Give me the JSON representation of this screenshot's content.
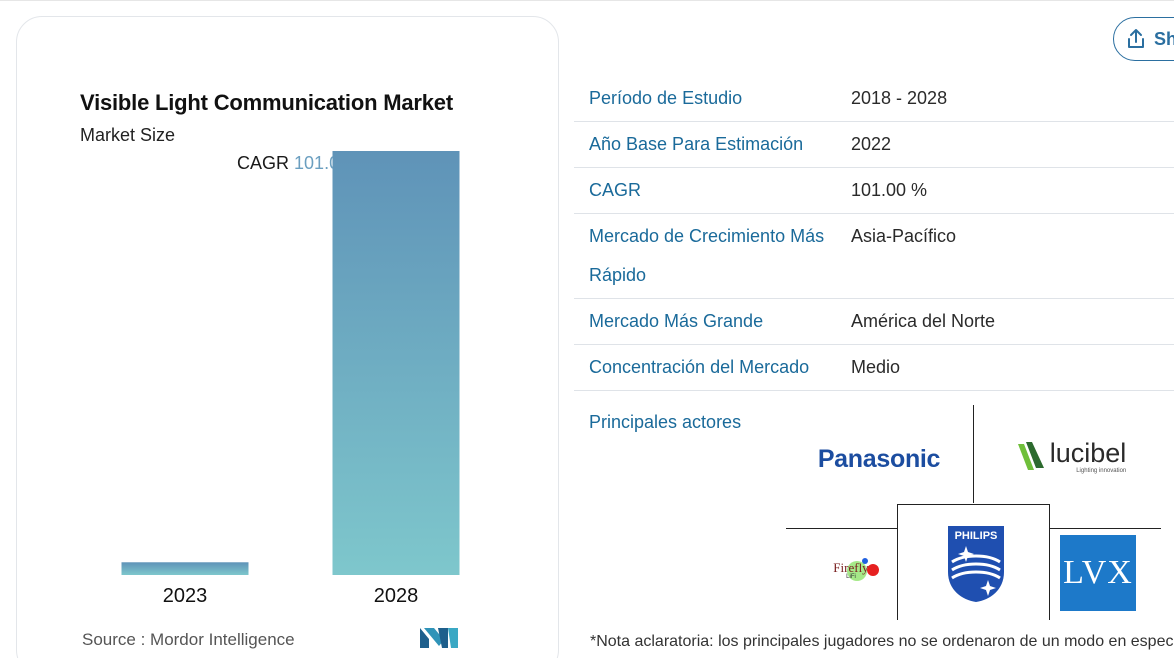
{
  "chart": {
    "title": "Visible Light Communication Market",
    "subtitle": "Market Size",
    "cagr_prefix": "CAGR",
    "cagr_value": "101.00 %",
    "source": "Source :  Mordor Intelligence"
  },
  "chart_data": {
    "type": "bar",
    "categories": [
      "2023",
      "2028"
    ],
    "values": [
      3,
      100
    ],
    "ylim": [
      0,
      100
    ],
    "grid": false,
    "colors": {
      "bar_top": "#5f93b8",
      "bar_bottom": "#7ec7cc"
    }
  },
  "share": {
    "label": "Sh"
  },
  "info_rows": [
    {
      "label": "Período de Estudio",
      "value": "2018 - 2028"
    },
    {
      "label": "Año Base Para Estimación",
      "value": "2022"
    },
    {
      "label": "CAGR",
      "value": "101.00 %"
    },
    {
      "label": "Mercado de Crecimiento Más Rápido",
      "value": "Asia-Pacífico"
    },
    {
      "label": "Mercado Más Grande",
      "value": "América del Norte"
    },
    {
      "label": "Concentración del Mercado",
      "value": "Medio"
    }
  ],
  "players": {
    "label": "Principales actores",
    "logos": {
      "panasonic": "Panasonic",
      "lucibel": "lucibel",
      "lucibel_tagline": "Lighting innovation",
      "firefly": "Firefly",
      "firefly_sub": "LiFi",
      "philips": "PHILIPS",
      "lvx": "LVX"
    }
  },
  "footnote": "*Nota aclaratoria: los principales jugadores no se ordenaron de un modo en especial",
  "colors": {
    "accent": "#1a6a9a",
    "label_blue": "#1a6a9a"
  }
}
